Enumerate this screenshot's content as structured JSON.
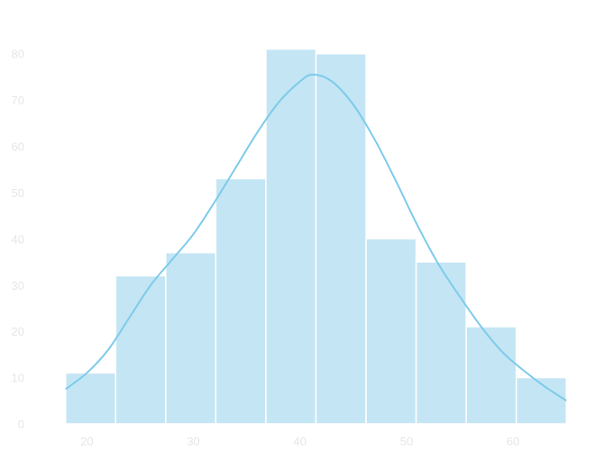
{
  "chart_data": {
    "type": "bar",
    "subtype": "histogram_with_kde",
    "title": "",
    "xlabel": "",
    "ylabel": "",
    "xlim": [
      17.6,
      65.4
    ],
    "ylim": [
      0,
      85
    ],
    "x_ticks": [
      20,
      30,
      40,
      50,
      60
    ],
    "y_ticks": [
      0,
      10,
      20,
      30,
      40,
      50,
      60,
      70,
      80
    ],
    "grid": false,
    "bins": [
      {
        "start": 18.0,
        "end": 22.7,
        "count": 11
      },
      {
        "start": 22.7,
        "end": 27.4,
        "count": 32
      },
      {
        "start": 27.4,
        "end": 32.1,
        "count": 37
      },
      {
        "start": 32.1,
        "end": 36.8,
        "count": 53
      },
      {
        "start": 36.8,
        "end": 41.5,
        "count": 81
      },
      {
        "start": 41.5,
        "end": 46.2,
        "count": 80
      },
      {
        "start": 46.2,
        "end": 50.9,
        "count": 40
      },
      {
        "start": 50.9,
        "end": 55.6,
        "count": 35
      },
      {
        "start": 55.6,
        "end": 60.3,
        "count": 21
      },
      {
        "start": 60.3,
        "end": 65.0,
        "count": 10
      }
    ],
    "kde_curve": {
      "x": [
        18.0,
        20.0,
        22.0,
        24.0,
        26.0,
        28.0,
        30.0,
        32.0,
        34.0,
        36.0,
        38.0,
        40.0,
        41.2,
        43.0,
        45.0,
        47.0,
        49.0,
        51.0,
        53.0,
        55.0,
        57.0,
        59.0,
        61.0,
        63.0,
        65.0
      ],
      "y": [
        7.5,
        11,
        16,
        23,
        30,
        35.5,
        41,
        48,
        55.5,
        63,
        69.5,
        74,
        75.5,
        74,
        69,
        61.5,
        52.5,
        43,
        34.5,
        27.5,
        21,
        15.5,
        11.5,
        8,
        5
      ]
    },
    "colors": {
      "bar_fill": "#c4e5f4",
      "bar_edge": "#ffffff",
      "kde_line": "#7dcbea",
      "tick_text": "#e6e6e6"
    }
  }
}
